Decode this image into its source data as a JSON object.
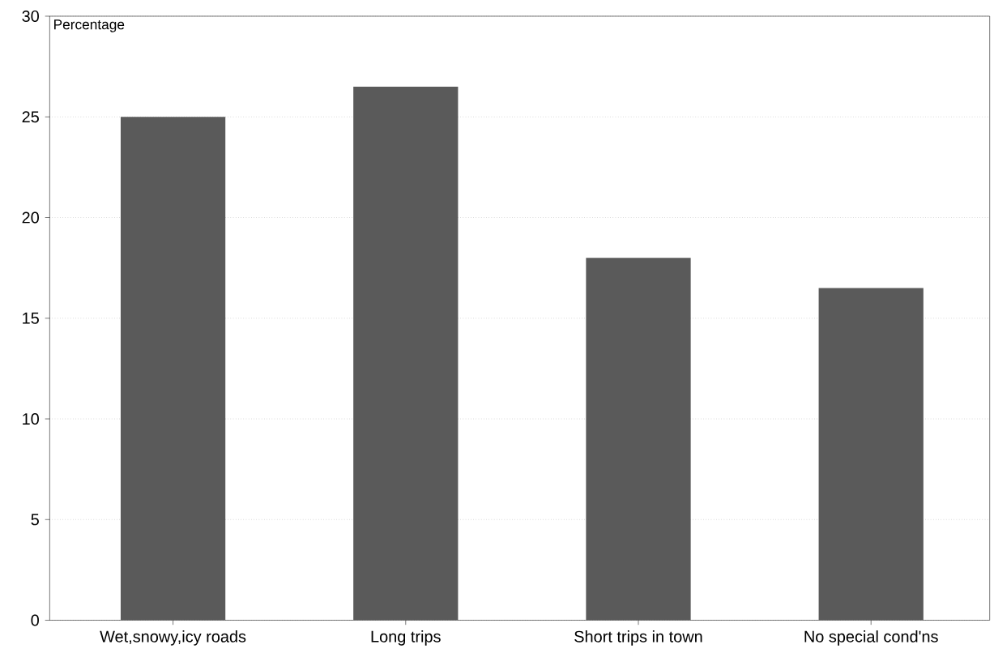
{
  "chart_data": {
    "type": "bar",
    "ylabel": "Percentage",
    "categories": [
      "Wet,snowy,icy roads",
      "Long trips",
      "Short trips in town",
      "No special cond'ns"
    ],
    "values": [
      25,
      26.5,
      18,
      16.5
    ],
    "color": "#5a5a5a",
    "ylim": [
      0,
      30
    ],
    "yticks": [
      0,
      5,
      10,
      15,
      20,
      25,
      30
    ],
    "grid": "y"
  }
}
